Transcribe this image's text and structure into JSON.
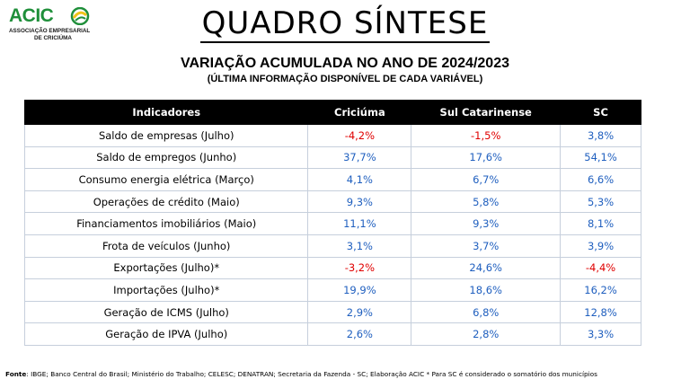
{
  "logo": {
    "name": "ACIC",
    "line1": "ASSOCIAÇÃO EMPRESARIAL",
    "line2": "DE CRICIÚMA",
    "brand_color": "#1f8f3a",
    "accent_color": "#f0c419"
  },
  "title": "QUADRO SÍNTESE",
  "subtitle": "VARIAÇÃO ACUMULADA NO ANO DE 2024/2023",
  "subtitle_note": "(ÚLTIMA INFORMAÇÃO DISPONÍVEL DE CADA VARIÁVEL)",
  "table": {
    "headers": [
      "Indicadores",
      "Criciúma",
      "Sul Catarinense",
      "SC"
    ],
    "rows": [
      {
        "indicator": "Saldo de empresas (Julho)",
        "values": [
          "-4,2%",
          "-1,5%",
          "3,8%"
        ]
      },
      {
        "indicator": "Saldo de empregos (Junho)",
        "values": [
          "37,7%",
          "17,6%",
          "54,1%"
        ]
      },
      {
        "indicator": "Consumo energia elétrica (Março)",
        "values": [
          "4,1%",
          "6,7%",
          "6,6%"
        ]
      },
      {
        "indicator": "Operações de crédito (Maio)",
        "values": [
          "9,3%",
          "5,8%",
          "5,3%"
        ]
      },
      {
        "indicator": "Financiamentos imobiliários (Maio)",
        "values": [
          "11,1%",
          "9,3%",
          "8,1%"
        ]
      },
      {
        "indicator": "Frota de veículos (Junho)",
        "values": [
          "3,1%",
          "3,7%",
          "3,9%"
        ]
      },
      {
        "indicator": "Exportações (Julho)*",
        "values": [
          "-3,2%",
          "24,6%",
          "-4,4%"
        ]
      },
      {
        "indicator": "Importações (Julho)*",
        "values": [
          "19,9%",
          "18,6%",
          "16,2%"
        ]
      },
      {
        "indicator": "Geração de ICMS (Julho)",
        "values": [
          "2,9%",
          "6,8%",
          "12,8%"
        ]
      },
      {
        "indicator": "Geração de IPVA (Julho)",
        "values": [
          "2,6%",
          "2,8%",
          "3,3%"
        ]
      }
    ],
    "colors": {
      "positive": "#1f5fbf",
      "negative": "#e00000"
    }
  },
  "footer": {
    "label": "Fonte",
    "text": ": IBGE; Banco Central do Brasil; Ministério do Trabalho; CELESC; DENATRAN; Secretaria da Fazenda - SC; Elaboração ACIC * Para SC é considerado o somatório dos municípios"
  }
}
